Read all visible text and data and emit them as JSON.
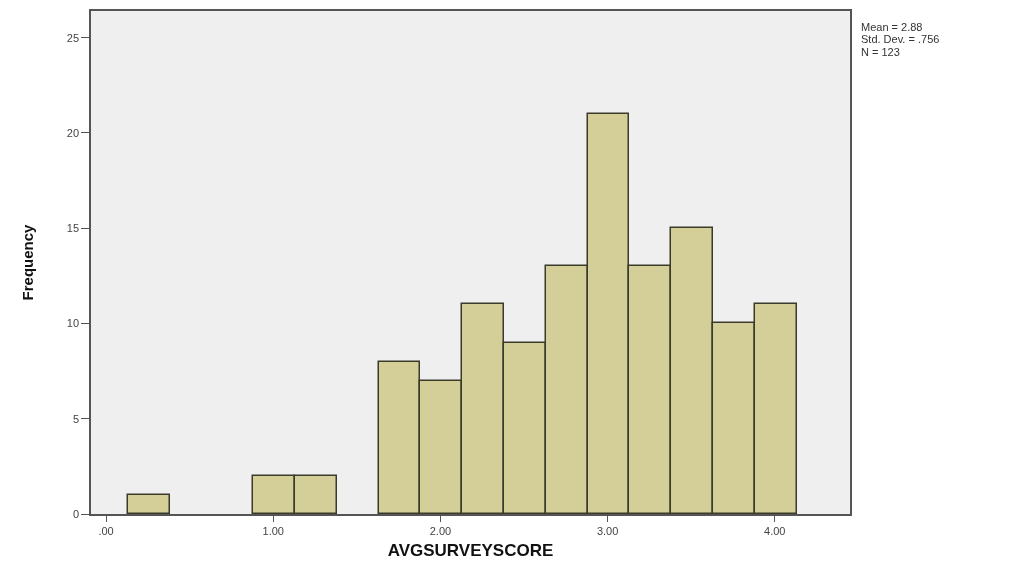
{
  "chart_data": {
    "type": "histogram",
    "xlabel": "AVGSURVEYSCORE",
    "ylabel": "Frequency",
    "bins": [
      0.13,
      0.38,
      0.63,
      0.88,
      1.13,
      1.38,
      1.63,
      1.88,
      2.13,
      2.38,
      2.63,
      2.88,
      3.13,
      3.38,
      3.63,
      3.88,
      4.13
    ],
    "values": [
      1,
      0,
      0,
      2,
      2,
      0,
      8,
      7,
      11,
      9,
      13,
      21,
      13,
      15,
      10,
      11
    ],
    "color": "#d4cf98",
    "xlim": [
      -0.09,
      4.45
    ],
    "xticks": [
      {
        "value": 0,
        "label": ".00"
      },
      {
        "value": 1,
        "label": "1.00"
      },
      {
        "value": 2,
        "label": "2.00"
      },
      {
        "value": 3,
        "label": "3.00"
      },
      {
        "value": 4,
        "label": "4.00"
      }
    ],
    "ylim": [
      0,
      26.4
    ],
    "yticks": [
      0,
      5,
      10,
      15,
      20,
      25
    ],
    "grid": false,
    "legend": false,
    "annotations": [
      "Mean = 2.88",
      "Std. Dev. = .756",
      "N = 123"
    ]
  }
}
